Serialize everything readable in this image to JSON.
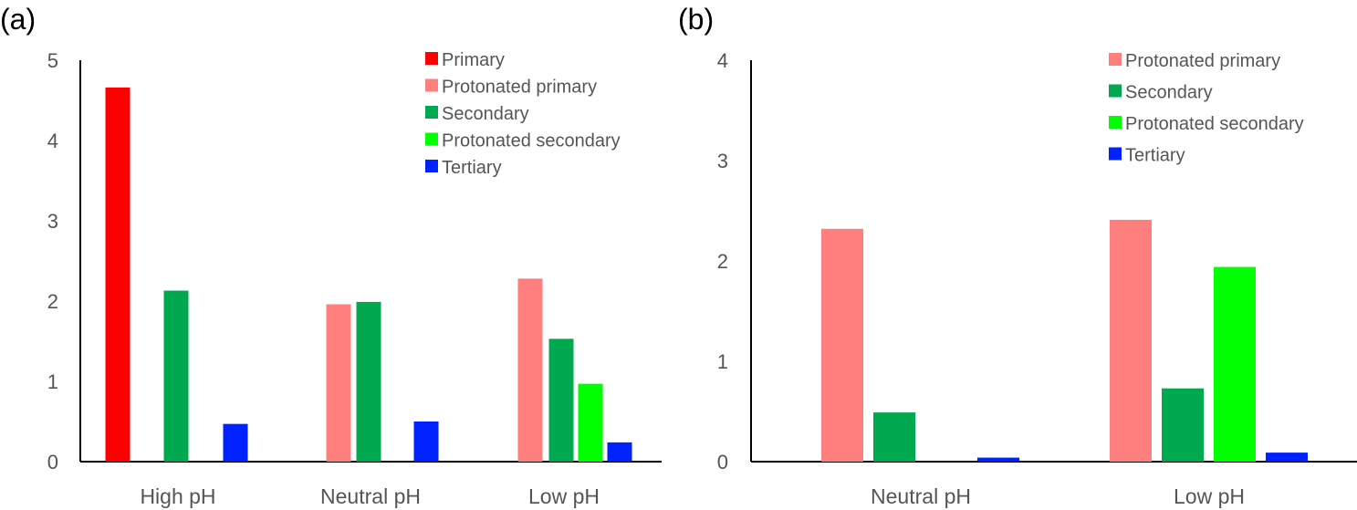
{
  "chart_data": [
    {
      "panel_label": "(a)",
      "type": "bar",
      "categories": [
        "High pH",
        "Neutral pH",
        "Low pH"
      ],
      "ylim": [
        0,
        5
      ],
      "yticks": [
        "0",
        "1",
        "2",
        "3",
        "4",
        "5"
      ],
      "grid": false,
      "legend_position": "top-right",
      "series": [
        {
          "name": "Primary",
          "color": "#ff0000",
          "values": [
            4.66,
            null,
            null
          ]
        },
        {
          "name": "Protonated primary",
          "color": "#ff7f7f",
          "values": [
            null,
            1.96,
            2.28
          ]
        },
        {
          "name": "Secondary",
          "color": "#00a84f",
          "values": [
            2.13,
            1.99,
            1.53
          ]
        },
        {
          "name": "Protonated secondary",
          "color": "#00ff00",
          "values": [
            null,
            null,
            0.97
          ]
        },
        {
          "name": "Tertiary",
          "color": "#0022ff",
          "values": [
            0.47,
            0.5,
            0.24
          ]
        }
      ]
    },
    {
      "panel_label": "(b)",
      "type": "bar",
      "categories": [
        "Neutral pH",
        "Low pH"
      ],
      "ylim": [
        0,
        4
      ],
      "yticks": [
        "0",
        "1",
        "2",
        "3",
        "4"
      ],
      "grid": false,
      "legend_position": "top-right",
      "series": [
        {
          "name": "Protonated primary",
          "color": "#ff7f7f",
          "values": [
            2.32,
            2.41
          ]
        },
        {
          "name": "Secondary",
          "color": "#00a84f",
          "values": [
            0.49,
            0.73
          ]
        },
        {
          "name": "Protonated secondary",
          "color": "#00ff00",
          "values": [
            null,
            1.94
          ]
        },
        {
          "name": "Tertiary",
          "color": "#0022ff",
          "values": [
            0.04,
            0.09
          ]
        }
      ]
    }
  ]
}
